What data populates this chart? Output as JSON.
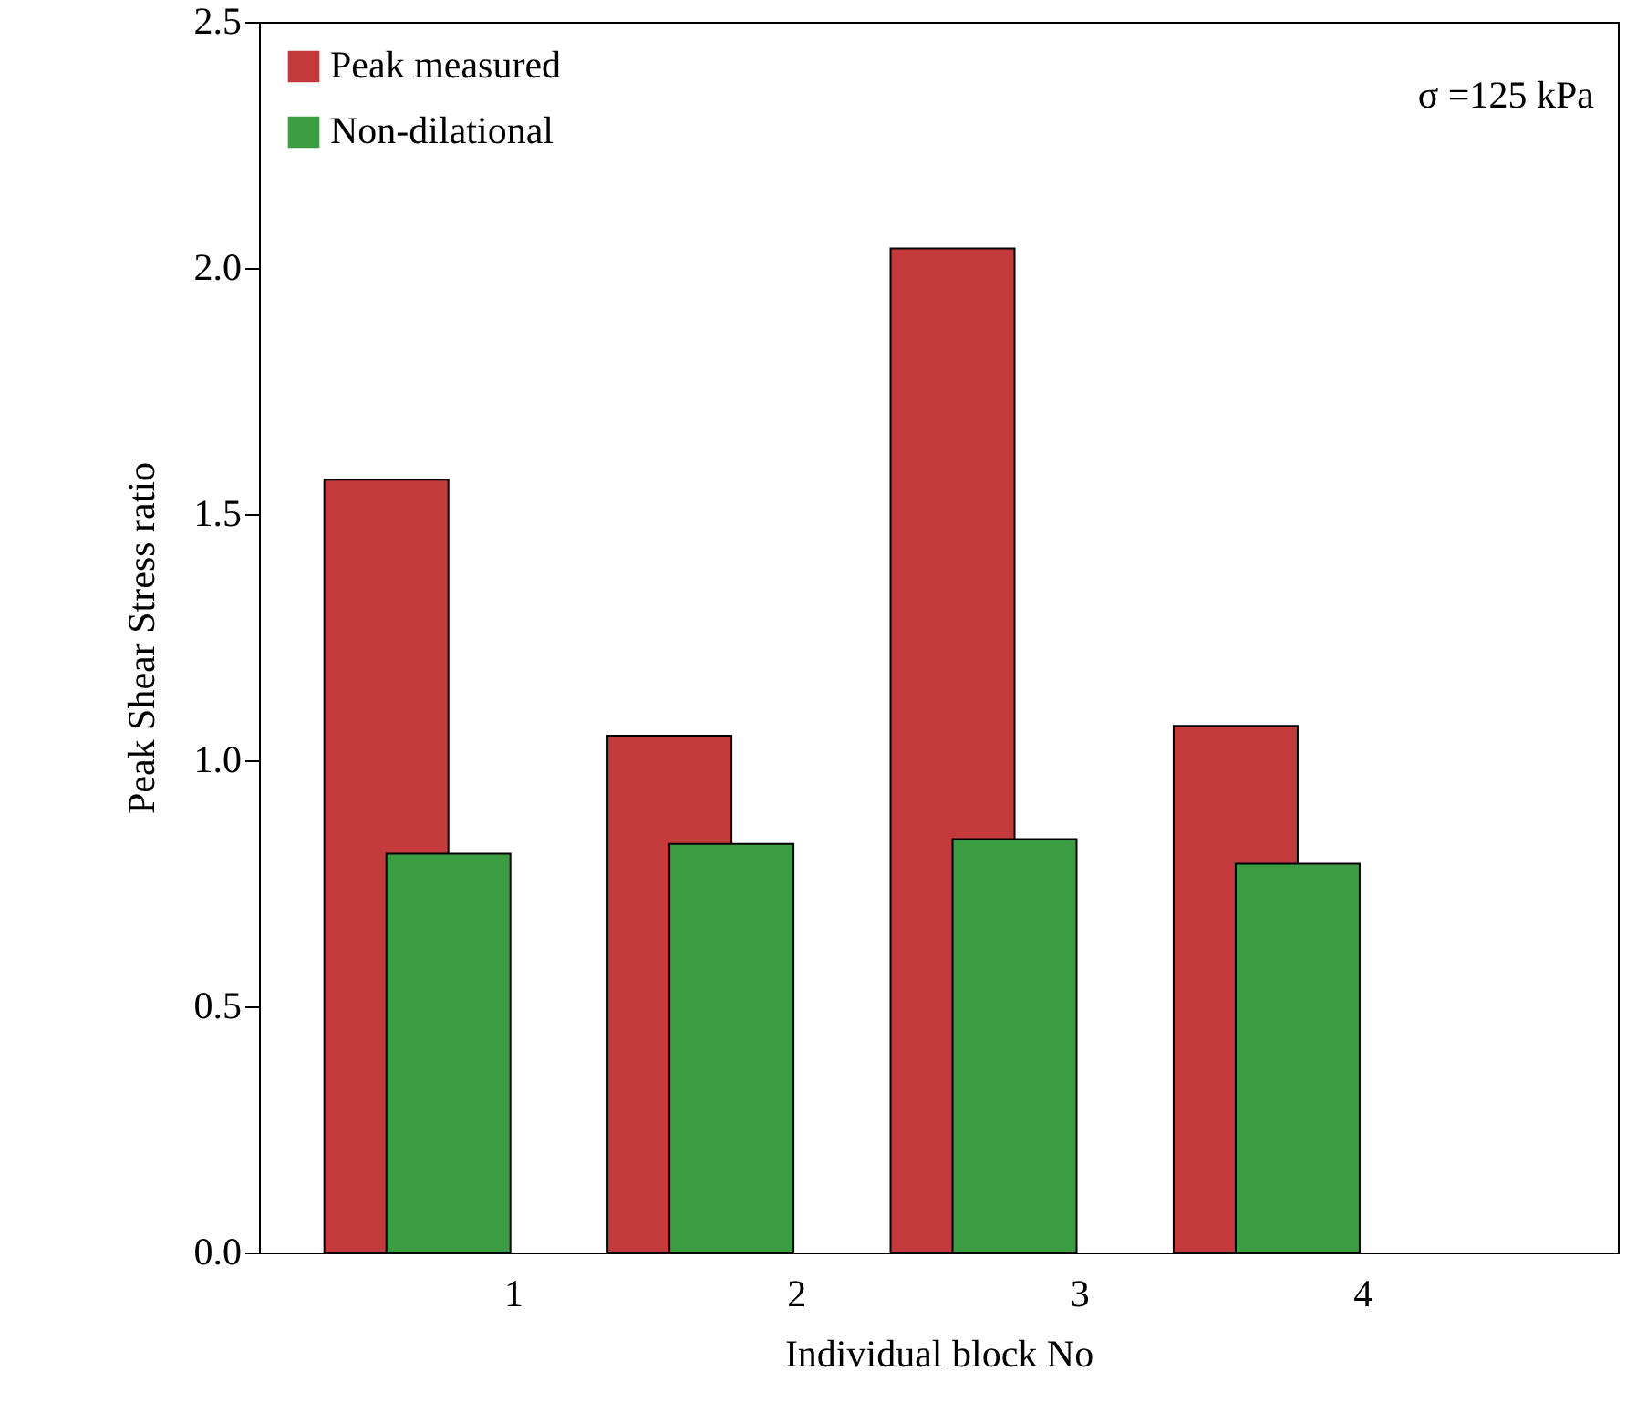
{
  "chart_data": {
    "type": "bar",
    "xlabel": "Individual block No",
    "ylabel": "Peak Shear Stress ratio",
    "categories": [
      "1",
      "2",
      "3",
      "4"
    ],
    "series": [
      {
        "name": "Peak measured",
        "color": "#c43a3c",
        "values": [
          1.57,
          1.05,
          2.04,
          1.07
        ]
      },
      {
        "name": "Non-dilational",
        "color": "#3c9c42",
        "values": [
          0.81,
          0.83,
          0.84,
          0.79
        ]
      }
    ],
    "ylim": [
      0,
      2.5
    ],
    "yticks": [
      {
        "value": 0,
        "label": "0.0"
      },
      {
        "value": 0.5,
        "label": "0.5"
      },
      {
        "value": 1,
        "label": "1.0"
      },
      {
        "value": 1.5,
        "label": "1.5"
      },
      {
        "value": 2,
        "label": "2.0"
      },
      {
        "value": 2.5,
        "label": "2.5"
      }
    ],
    "annotations": [
      "σ =125 kPa"
    ],
    "legend": "top left",
    "grid": false
  }
}
